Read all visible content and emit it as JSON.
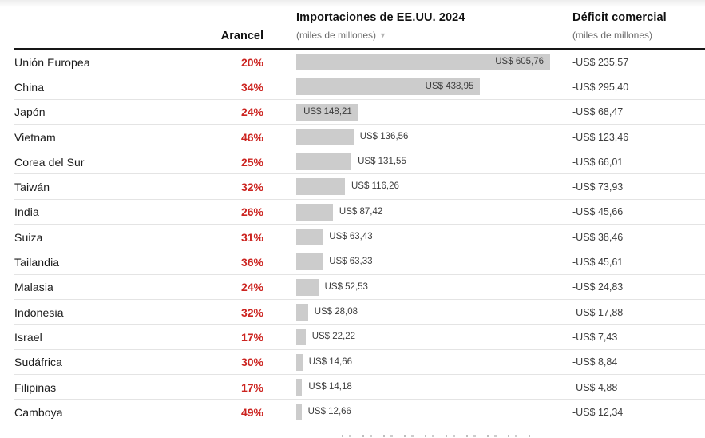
{
  "colors": {
    "accent_red": "#cc2420",
    "bar_fill": "#cccccc",
    "header_rule": "#171717",
    "row_divider": "#e4e4e4",
    "text_primary": "#1a1a1a",
    "text_secondary": "#3d3d3d",
    "text_muted": "#6b6b6b"
  },
  "header": {
    "tariff_label": "Arancel",
    "imports_title": "Importaciones de EE.UU. 2024",
    "imports_unit": "(miles de millones)",
    "sort_icon": "triangle-down",
    "sort_glyph": "▼",
    "deficit_title": "Déficit comercial",
    "deficit_unit": "(miles de millones)"
  },
  "chart_data": {
    "type": "bar",
    "orientation": "horizontal",
    "title": "Importaciones de EE.UU. 2024",
    "xlabel": "US$ (miles de millones)",
    "ylabel": "",
    "xlim": [
      0,
      620
    ],
    "grid": false,
    "legend_position": "none",
    "categories": [
      "Unión Europea",
      "China",
      "Japón",
      "Vietnam",
      "Corea del Sur",
      "Taiwán",
      "India",
      "Suiza",
      "Tailandia",
      "Malasia",
      "Indonesia",
      "Israel",
      "Sudáfrica",
      "Filipinas",
      "Camboya"
    ],
    "series": [
      {
        "name": "Arancel (%)",
        "values": [
          20,
          34,
          24,
          46,
          25,
          32,
          26,
          31,
          36,
          24,
          32,
          17,
          30,
          17,
          49
        ]
      },
      {
        "name": "Importaciones de EE.UU. 2024 (miles de millones de US$)",
        "values": [
          605.76,
          438.95,
          148.21,
          136.56,
          131.55,
          116.26,
          87.42,
          63.43,
          63.33,
          52.53,
          28.08,
          22.22,
          14.66,
          14.18,
          12.66
        ]
      },
      {
        "name": "Déficit comercial (miles de millones de US$)",
        "values": [
          -235.57,
          -295.4,
          -68.47,
          -123.46,
          -66.01,
          -73.93,
          -45.66,
          -38.46,
          -45.61,
          -24.83,
          -17.88,
          -7.43,
          -8.84,
          -4.88,
          -12.34
        ]
      }
    ]
  },
  "rows": [
    {
      "country": "Unión Europea",
      "tariff": "20%",
      "imports_value": 605.76,
      "imports_label": "US$ 605,76",
      "deficit_label": "-US$ 235,57",
      "label_inside": true
    },
    {
      "country": "China",
      "tariff": "34%",
      "imports_value": 438.95,
      "imports_label": "US$ 438,95",
      "deficit_label": "-US$ 295,40",
      "label_inside": true
    },
    {
      "country": "Japón",
      "tariff": "24%",
      "imports_value": 148.21,
      "imports_label": "US$ 148,21",
      "deficit_label": "-US$ 68,47",
      "label_inside": true
    },
    {
      "country": "Vietnam",
      "tariff": "46%",
      "imports_value": 136.56,
      "imports_label": "US$ 136,56",
      "deficit_label": "-US$ 123,46",
      "label_inside": false
    },
    {
      "country": "Corea del Sur",
      "tariff": "25%",
      "imports_value": 131.55,
      "imports_label": "US$ 131,55",
      "deficit_label": "-US$ 66,01",
      "label_inside": false
    },
    {
      "country": "Taiwán",
      "tariff": "32%",
      "imports_value": 116.26,
      "imports_label": "US$ 116,26",
      "deficit_label": "-US$ 73,93",
      "label_inside": false
    },
    {
      "country": "India",
      "tariff": "26%",
      "imports_value": 87.42,
      "imports_label": "US$ 87,42",
      "deficit_label": "-US$ 45,66",
      "label_inside": false
    },
    {
      "country": "Suiza",
      "tariff": "31%",
      "imports_value": 63.43,
      "imports_label": "US$ 63,43",
      "deficit_label": "-US$ 38,46",
      "label_inside": false
    },
    {
      "country": "Tailandia",
      "tariff": "36%",
      "imports_value": 63.33,
      "imports_label": "US$ 63,33",
      "deficit_label": "-US$ 45,61",
      "label_inside": false
    },
    {
      "country": "Malasia",
      "tariff": "24%",
      "imports_value": 52.53,
      "imports_label": "US$ 52,53",
      "deficit_label": "-US$ 24,83",
      "label_inside": false
    },
    {
      "country": "Indonesia",
      "tariff": "32%",
      "imports_value": 28.08,
      "imports_label": "US$ 28,08",
      "deficit_label": "-US$ 17,88",
      "label_inside": false
    },
    {
      "country": "Israel",
      "tariff": "17%",
      "imports_value": 22.22,
      "imports_label": "US$ 22,22",
      "deficit_label": "-US$ 7,43",
      "label_inside": false
    },
    {
      "country": "Sudáfrica",
      "tariff": "30%",
      "imports_value": 14.66,
      "imports_label": "US$ 14,66",
      "deficit_label": "-US$ 8,84",
      "label_inside": false
    },
    {
      "country": "Filipinas",
      "tariff": "17%",
      "imports_value": 14.18,
      "imports_label": "US$ 14,18",
      "deficit_label": "-US$ 4,88",
      "label_inside": false
    },
    {
      "country": "Camboya",
      "tariff": "49%",
      "imports_value": 12.66,
      "imports_label": "US$ 12,66",
      "deficit_label": "-US$ 12,34",
      "label_inside": false
    }
  ]
}
